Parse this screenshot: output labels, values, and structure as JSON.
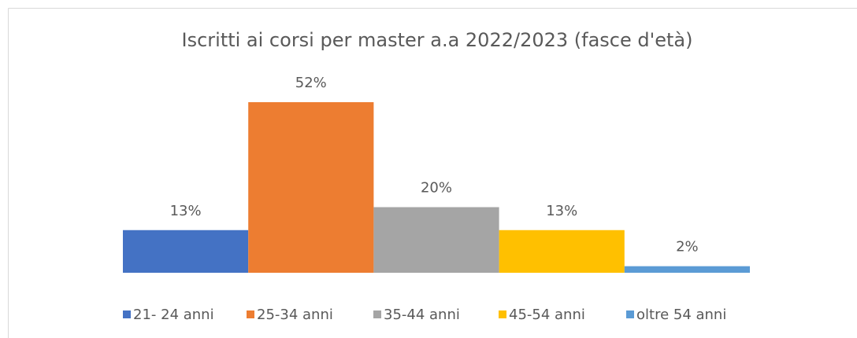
{
  "chart_data": {
    "type": "bar",
    "title": "Iscritti ai corsi per master a.a 2022/2023 (fasce d'età)",
    "series": [
      {
        "name": "21- 24 anni",
        "color": "#4472c4",
        "values": [
          13
        ],
        "value_labels": [
          "13%"
        ]
      },
      {
        "name": "25-34 anni",
        "color": "#ed7d31",
        "values": [
          52
        ],
        "value_labels": [
          "52%"
        ]
      },
      {
        "name": "35-44 anni",
        "color": "#a5a5a5",
        "values": [
          20
        ],
        "value_labels": [
          "20%"
        ]
      },
      {
        "name": "45-54 anni",
        "color": "#ffc000",
        "values": [
          13
        ],
        "value_labels": [
          "13%"
        ]
      },
      {
        "name": "oltre 54 anni",
        "color": "#5b9bd5",
        "values": [
          2
        ],
        "value_labels": [
          "2%"
        ]
      }
    ]
  }
}
